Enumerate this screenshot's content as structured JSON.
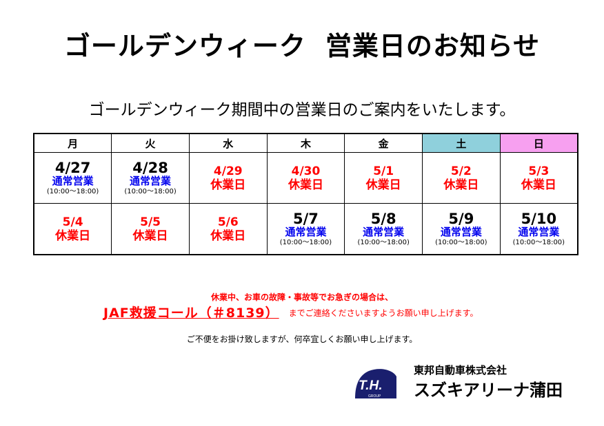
{
  "title_part1": "ゴールデンウィーク",
  "title_part2": "営業日のお知らせ",
  "subtitle": "ゴールデンウィーク期間中の営業日のご案内をいたします。",
  "weekdays": [
    "月",
    "火",
    "水",
    "木",
    "金",
    "土",
    "日"
  ],
  "colors": {
    "saturday_header": "#8fd0dc",
    "sunday_header": "#f7a0f0",
    "closed": "#ff0000",
    "open": "#0000ee"
  },
  "week1": [
    {
      "date": "4/27",
      "status": "通常営業",
      "hours": "(10:00～18:00)"
    },
    {
      "date": "4/28",
      "status": "通常営業",
      "hours": "(10:00～18:00)"
    },
    {
      "date": "4/29",
      "status": "休業日"
    },
    {
      "date": "4/30",
      "status": "休業日"
    },
    {
      "date": "5/1",
      "status": "休業日"
    },
    {
      "date": "5/2",
      "status": "休業日"
    },
    {
      "date": "5/3",
      "status": "休業日"
    }
  ],
  "week2": [
    {
      "date": "5/4",
      "status": "休業日"
    },
    {
      "date": "5/5",
      "status": "休業日"
    },
    {
      "date": "5/6",
      "status": "休業日"
    },
    {
      "date": "5/7",
      "status": "通常営業",
      "hours": "(10:00～18:00)"
    },
    {
      "date": "5/8",
      "status": "通常営業",
      "hours": "(10:00～18:00)"
    },
    {
      "date": "5/9",
      "status": "通常営業",
      "hours": "(10:00～18:00)"
    },
    {
      "date": "5/10",
      "status": "通常営業",
      "hours": "(10:00～18:00)"
    }
  ],
  "notice_line1": "休業中、お車の故障・事故等でお急ぎの場合は、",
  "jaf_call": "JAF救援コール（＃8139）",
  "notice_line2": "までご連絡くださいますようお願い申し上げます。",
  "apology": "ご不便をお掛け致しますが、何卒宜しくお願い申し上げます。",
  "logo": {
    "text": "T.H.",
    "group": "GROUP",
    "color": "#1a1f6e"
  },
  "company_parent": "東邦自動車株式会社",
  "company_dealer": "スズキアリーナ蒲田"
}
